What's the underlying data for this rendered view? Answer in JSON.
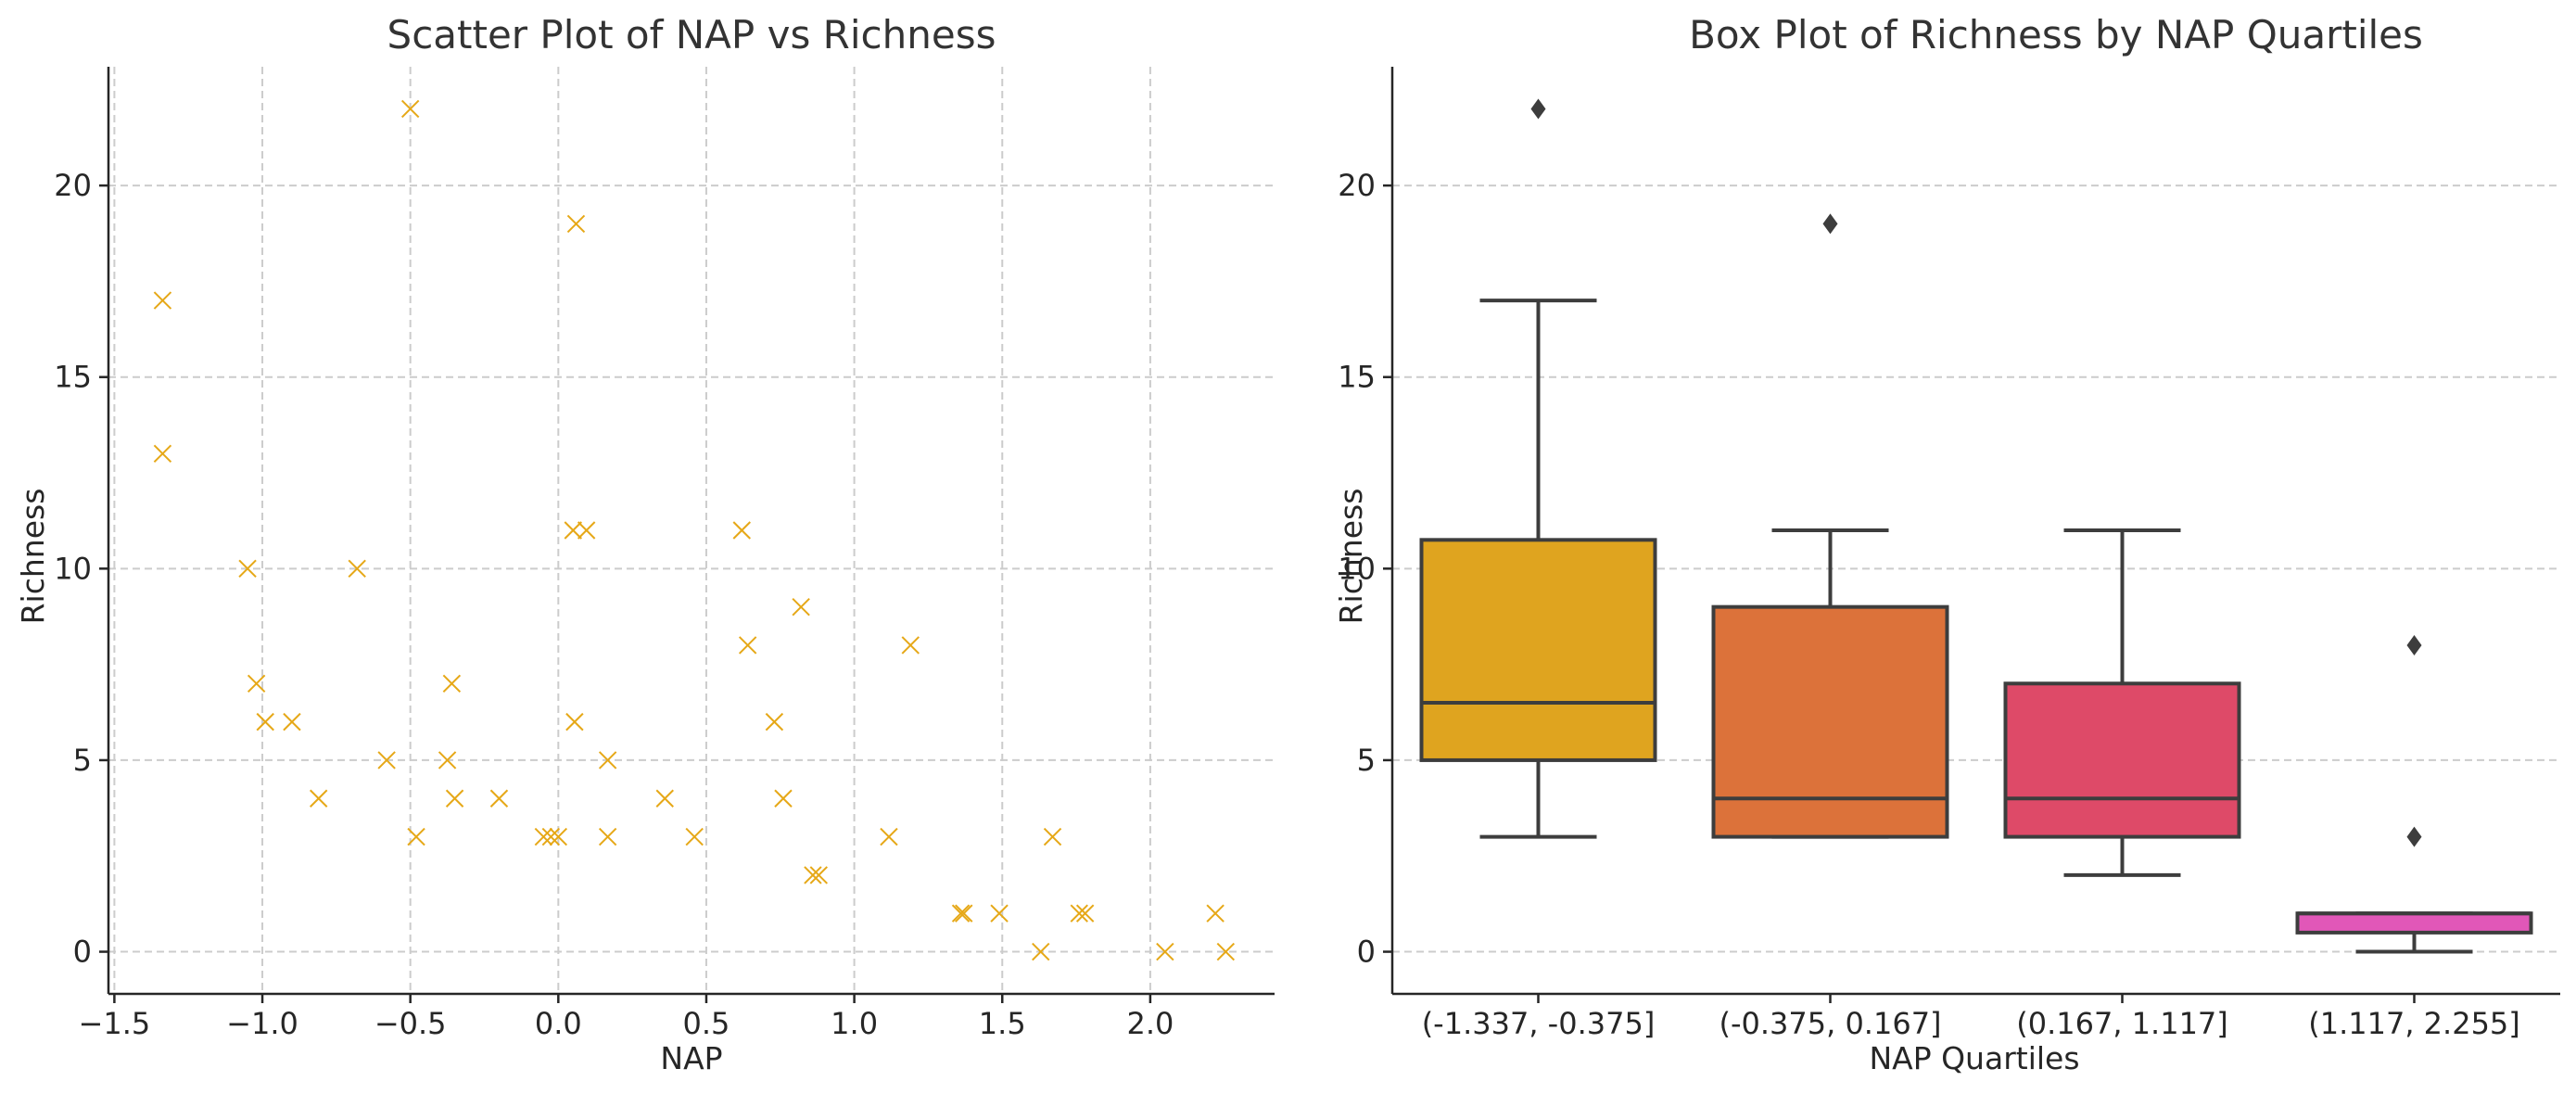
{
  "chart_data": [
    {
      "type": "scatter",
      "title": "Scatter Plot of NAP vs Richness",
      "xlabel": "NAP",
      "ylabel": "Richness",
      "xlim": [
        -1.52,
        2.42
      ],
      "ylim": [
        -1.1,
        23.1
      ],
      "xticks": [
        -1.5,
        -1.0,
        -0.5,
        0.0,
        0.5,
        1.0,
        1.5,
        2.0
      ],
      "xtick_labels": [
        "−1.5",
        "−1.0",
        "−0.5",
        "0.0",
        "0.5",
        "1.0",
        "1.5",
        "2.0"
      ],
      "yticks": [
        0,
        5,
        10,
        15,
        20
      ],
      "ytick_labels": [
        "0",
        "5",
        "10",
        "15",
        "20"
      ],
      "grid": true,
      "marker": "x",
      "color": "#e6a817",
      "points": [
        [
          -1.337,
          17
        ],
        [
          -1.337,
          13
        ],
        [
          -1.05,
          10
        ],
        [
          -1.02,
          7
        ],
        [
          -0.99,
          6
        ],
        [
          -0.9,
          6
        ],
        [
          -0.81,
          4
        ],
        [
          -0.68,
          10
        ],
        [
          -0.58,
          5
        ],
        [
          -0.5,
          22
        ],
        [
          -0.48,
          3
        ],
        [
          -0.375,
          5
        ],
        [
          -0.36,
          7
        ],
        [
          -0.35,
          4
        ],
        [
          -0.2,
          4
        ],
        [
          -0.05,
          3
        ],
        [
          -0.025,
          3
        ],
        [
          0.0,
          3
        ],
        [
          0.05,
          11
        ],
        [
          0.055,
          6
        ],
        [
          0.06,
          19
        ],
        [
          0.095,
          11
        ],
        [
          0.167,
          5
        ],
        [
          0.167,
          3
        ],
        [
          0.36,
          4
        ],
        [
          0.46,
          3
        ],
        [
          0.62,
          11
        ],
        [
          0.64,
          8
        ],
        [
          0.73,
          6
        ],
        [
          0.76,
          4
        ],
        [
          0.82,
          9
        ],
        [
          0.86,
          2
        ],
        [
          0.88,
          2
        ],
        [
          1.117,
          3
        ],
        [
          1.19,
          8
        ],
        [
          1.36,
          1
        ],
        [
          1.37,
          1
        ],
        [
          1.49,
          1
        ],
        [
          1.63,
          0
        ],
        [
          1.67,
          3
        ],
        [
          1.76,
          1
        ],
        [
          1.78,
          1
        ],
        [
          2.05,
          0
        ],
        [
          2.22,
          1
        ],
        [
          2.255,
          0
        ]
      ]
    },
    {
      "type": "box",
      "title": "Box Plot of Richness by NAP Quartiles",
      "xlabel": "NAP Quartiles",
      "ylabel": "Richness",
      "ylim": [
        -1.1,
        23.1
      ],
      "yticks": [
        0,
        5,
        10,
        15,
        20
      ],
      "ytick_labels": [
        "0",
        "5",
        "10",
        "15",
        "20"
      ],
      "grid": true,
      "categories": [
        "(-1.337, -0.375]",
        "(-0.375, 0.167]",
        "(0.167, 1.117]",
        "(1.117, 2.255]"
      ],
      "boxes": [
        {
          "q1": 5,
          "median": 6.5,
          "q3": 10.75,
          "whisker_low": 3,
          "whisker_high": 17,
          "outliers": [
            22
          ],
          "color": "#dfa41f"
        },
        {
          "q1": 3,
          "median": 4,
          "q3": 9,
          "whisker_low": 3,
          "whisker_high": 11,
          "outliers": [
            19
          ],
          "color": "#dc723a"
        },
        {
          "q1": 3,
          "median": 4,
          "q3": 7,
          "whisker_low": 2,
          "whisker_high": 11,
          "outliers": [],
          "color": "#de4a68"
        },
        {
          "q1": 0.5,
          "median": 1,
          "q3": 1,
          "whisker_low": 0,
          "whisker_high": 1,
          "outliers": [
            3,
            8
          ],
          "color": "#e157b8"
        }
      ]
    }
  ]
}
